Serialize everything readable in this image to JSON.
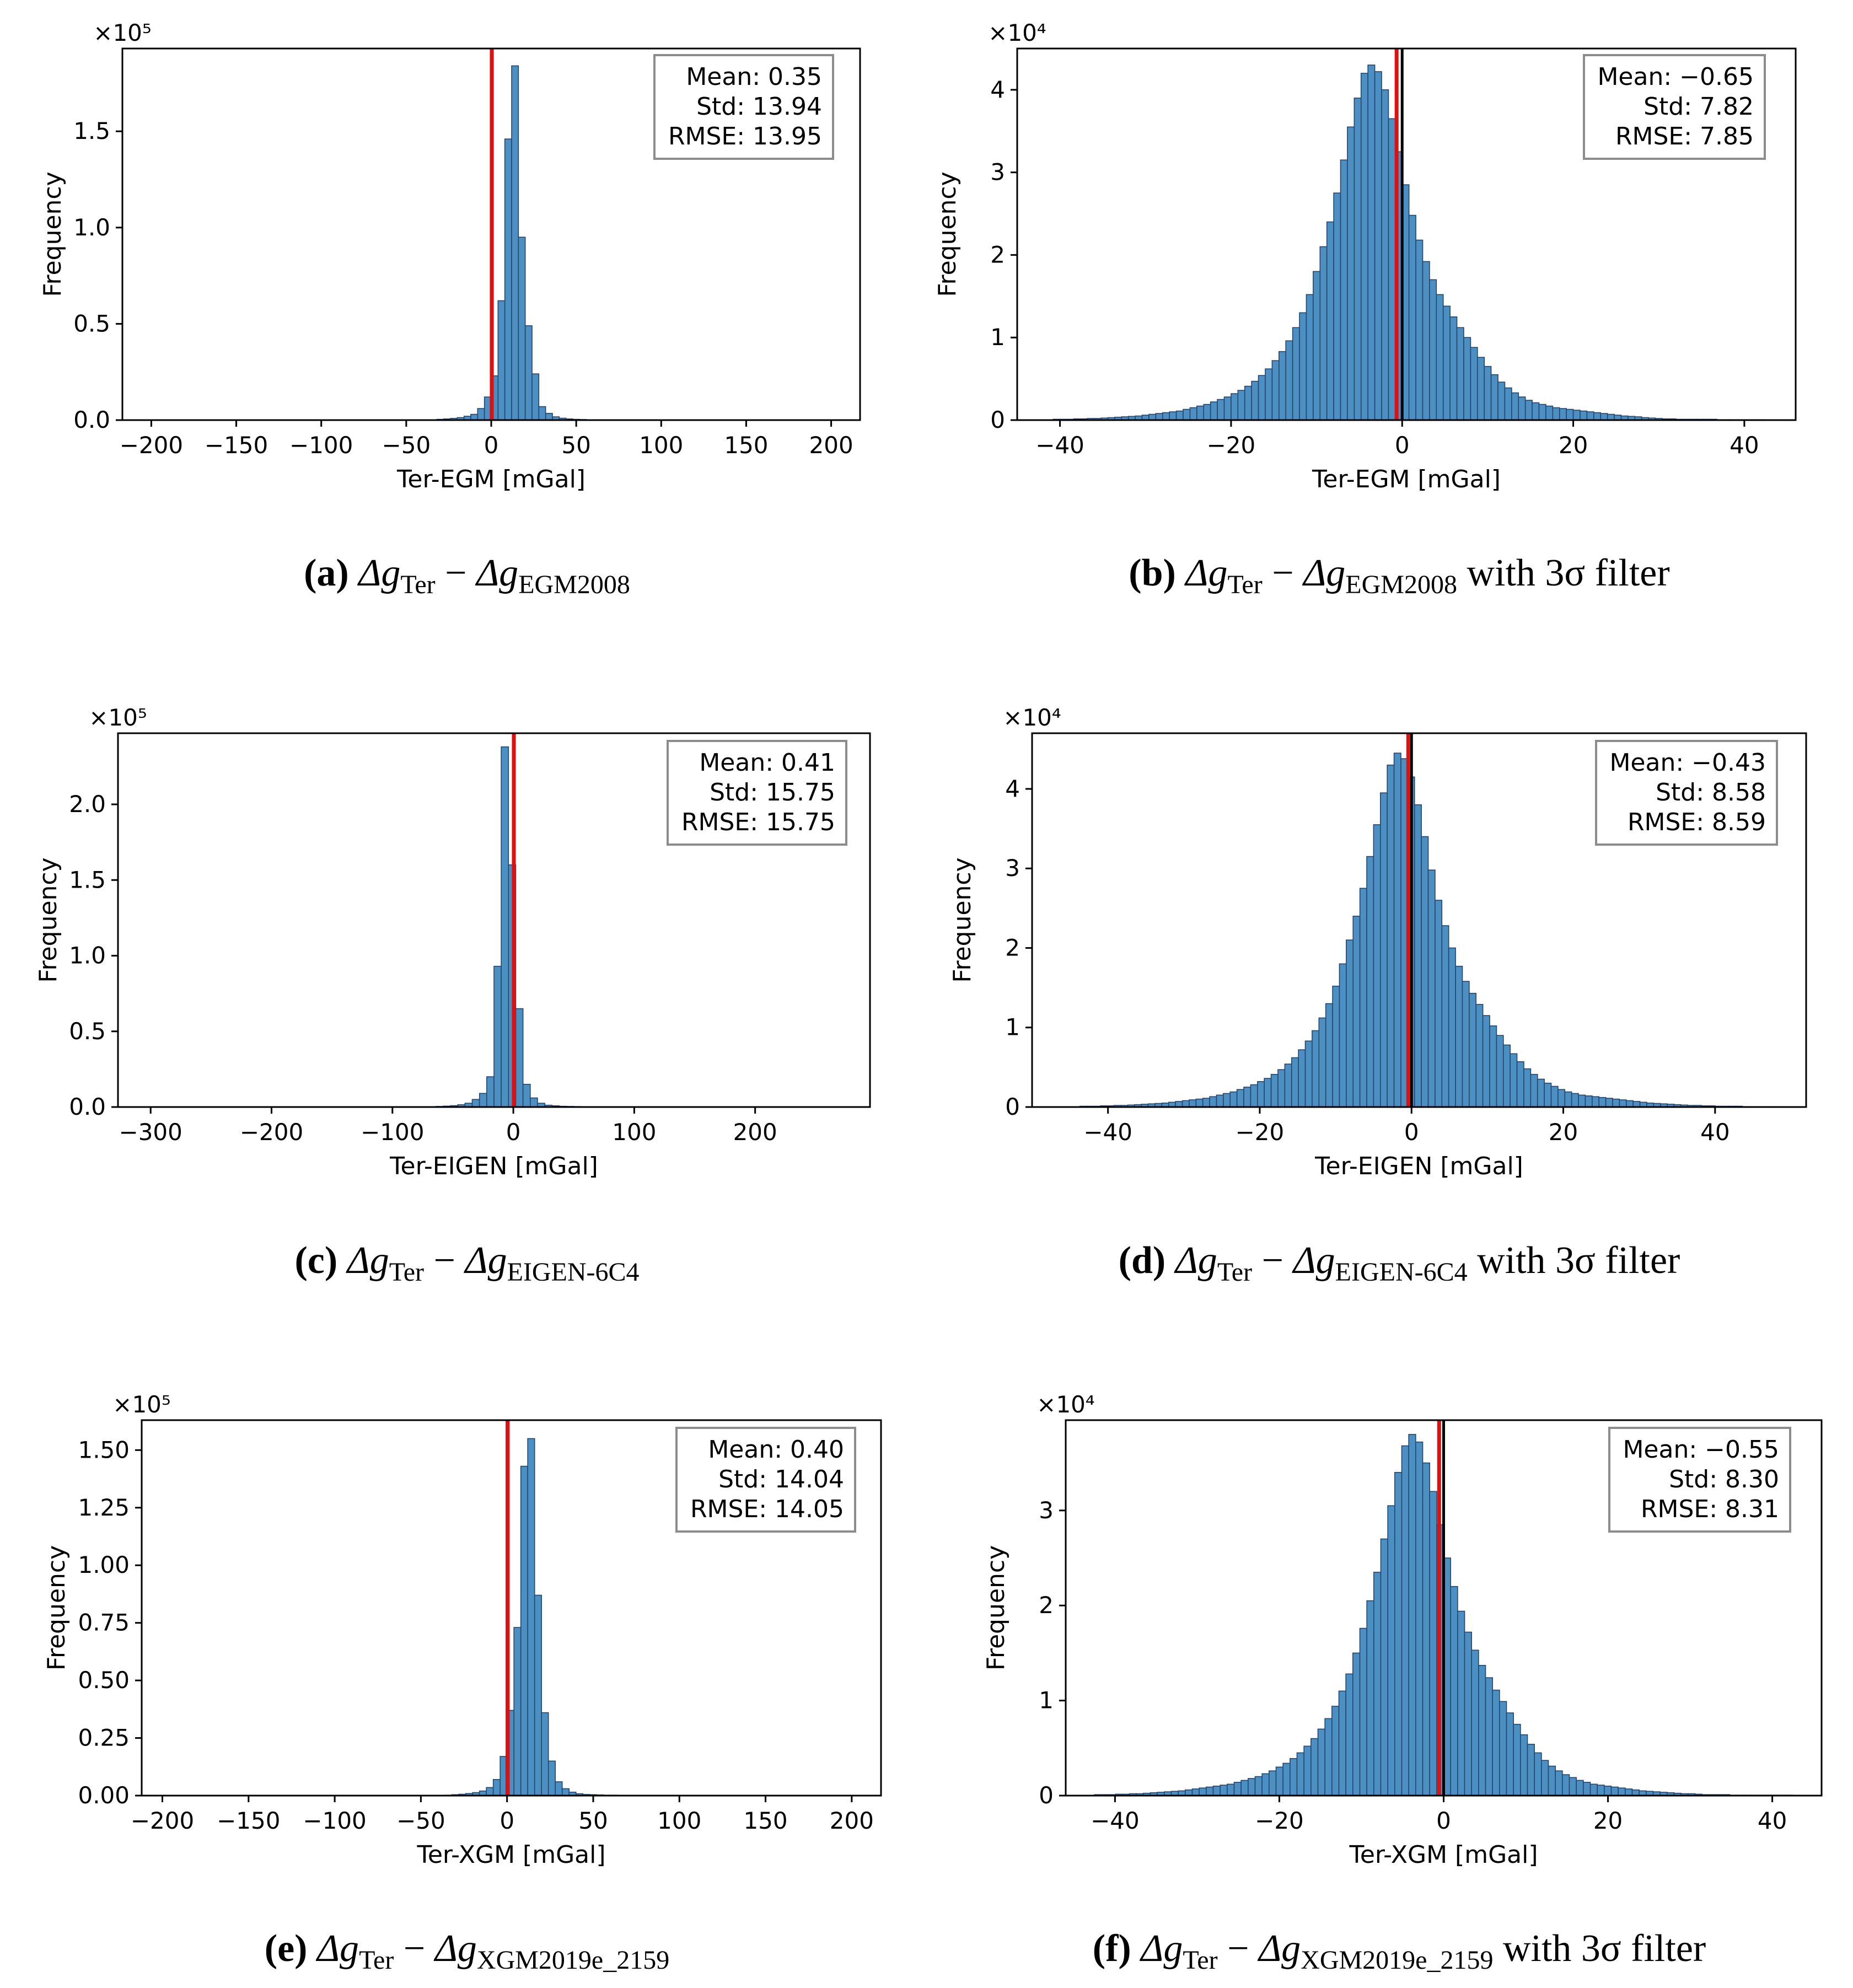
{
  "chart_data": [
    {
      "id": "a",
      "type": "bar",
      "xlabel": "Ter-EGM [mGal]",
      "ylabel": "Frequency",
      "exponent_label": "×10⁵",
      "scale": 100000,
      "xlim": [
        -217,
        217
      ],
      "ylim": [
        0,
        1.93
      ],
      "xticks": [
        -200,
        -150,
        -100,
        -50,
        0,
        50,
        100,
        150,
        200
      ],
      "yticks": [
        0,
        0.5,
        1.0,
        1.5
      ],
      "ydecimals": 1,
      "bins": {
        "start": -200,
        "width": 4,
        "counts": [
          0.001,
          0.001,
          0.001,
          0.001,
          0.001,
          0.001,
          0.001,
          0.001,
          0.001,
          0.001,
          0.001,
          0.001,
          0.001,
          0.001,
          0.001,
          0.001,
          0.001,
          0.001,
          0.001,
          0.001,
          0.001,
          0.001,
          0.001,
          0.001,
          0.001,
          0.001,
          0.001,
          0.001,
          0.001,
          0.001,
          0.001,
          0.001,
          0.001,
          0.001,
          0.001,
          0.001,
          0.001,
          0.001,
          0.001,
          0.001,
          0.001,
          0.002,
          0.004,
          0.006,
          0.009,
          0.013,
          0.02,
          0.03,
          0.06,
          0.12,
          0.23,
          0.62,
          1.46,
          1.84,
          0.95,
          0.49,
          0.24,
          0.07,
          0.035,
          0.017,
          0.01,
          0.006,
          0.004,
          0.003,
          0.002,
          0.002,
          0.001,
          0.001,
          0.001,
          0.001,
          0.001,
          0.001,
          0.001,
          0.001,
          0.001,
          0.001,
          0.001,
          0.001,
          0.001,
          0.001,
          0.001,
          0.001,
          0.001,
          0.001,
          0.001,
          0.001,
          0.001,
          0.001,
          0.001,
          0.001,
          0.001,
          0.001,
          0.001,
          0.001,
          0.001,
          0.001,
          0.001,
          0.001,
          0.001,
          0.001
        ]
      },
      "mean_line": 0.35,
      "zero_line": 0,
      "stats": {
        "mean": "Mean: 0.35",
        "std": "Std: 13.94",
        "rmse": "RMSE: 13.95"
      },
      "caption": {
        "letter": "(a)",
        "model": "EGM2008",
        "suffix": ""
      }
    },
    {
      "id": "b",
      "type": "bar",
      "xlabel": "Ter-EGM [mGal]",
      "ylabel": "Frequency",
      "exponent_label": "×10⁴",
      "scale": 10000,
      "xlim": [
        -45,
        46
      ],
      "ylim": [
        0,
        4.5
      ],
      "xticks": [
        -40,
        -20,
        0,
        20,
        40
      ],
      "yticks": [
        0,
        1,
        2,
        3,
        4
      ],
      "ydecimals": 0,
      "bins": {
        "start": -40.8,
        "width": 0.8,
        "counts": [
          0.01,
          0.01,
          0.01,
          0.015,
          0.015,
          0.02,
          0.02,
          0.025,
          0.03,
          0.035,
          0.04,
          0.045,
          0.05,
          0.06,
          0.07,
          0.08,
          0.09,
          0.1,
          0.11,
          0.13,
          0.15,
          0.17,
          0.19,
          0.22,
          0.25,
          0.28,
          0.32,
          0.36,
          0.41,
          0.47,
          0.54,
          0.62,
          0.72,
          0.83,
          0.96,
          1.12,
          1.3,
          1.52,
          1.8,
          2.1,
          2.4,
          2.75,
          3.15,
          3.55,
          3.9,
          4.2,
          4.3,
          4.22,
          4.0,
          3.65,
          3.25,
          2.85,
          2.48,
          2.18,
          1.92,
          1.7,
          1.52,
          1.38,
          1.25,
          1.12,
          1.0,
          0.88,
          0.76,
          0.65,
          0.55,
          0.46,
          0.39,
          0.33,
          0.28,
          0.24,
          0.21,
          0.19,
          0.17,
          0.15,
          0.14,
          0.13,
          0.12,
          0.11,
          0.1,
          0.09,
          0.08,
          0.07,
          0.06,
          0.05,
          0.045,
          0.04,
          0.03,
          0.025,
          0.02,
          0.015,
          0.015,
          0.01,
          0.01,
          0.01,
          0.01,
          0.01,
          0.01,
          0.005,
          0.005,
          0.005,
          0.005,
          0.005,
          0.005,
          0.005
        ]
      },
      "mean_line": -0.65,
      "zero_line": 0,
      "stats": {
        "mean": "Mean: −0.65",
        "std": "Std: 7.82",
        "rmse": "RMSE: 7.85"
      },
      "caption": {
        "letter": "(b)",
        "model": "EGM2008",
        "suffix": " with 3σ filter"
      }
    },
    {
      "id": "c",
      "type": "bar",
      "xlabel": "Ter-EIGEN [mGal]",
      "ylabel": "Frequency",
      "exponent_label": "×10⁵",
      "scale": 100000,
      "xlim": [
        -327,
        295
      ],
      "ylim": [
        0,
        2.47
      ],
      "xticks": [
        -300,
        -200,
        -100,
        0,
        100,
        200
      ],
      "yticks": [
        0,
        0.5,
        1.0,
        1.5,
        2.0
      ],
      "ydecimals": 1,
      "bins": {
        "start": -310,
        "width": 6,
        "counts": [
          0.001,
          0.001,
          0.001,
          0.001,
          0.001,
          0.001,
          0.001,
          0.001,
          0.001,
          0.001,
          0.001,
          0.001,
          0.001,
          0.001,
          0.001,
          0.001,
          0.001,
          0.001,
          0.001,
          0.001,
          0.001,
          0.001,
          0.001,
          0.001,
          0.001,
          0.001,
          0.001,
          0.001,
          0.001,
          0.001,
          0.001,
          0.001,
          0.001,
          0.001,
          0.001,
          0.001,
          0.001,
          0.001,
          0.001,
          0.001,
          0.002,
          0.004,
          0.006,
          0.009,
          0.015,
          0.025,
          0.05,
          0.09,
          0.2,
          0.93,
          2.38,
          1.6,
          0.65,
          0.15,
          0.06,
          0.025,
          0.012,
          0.008,
          0.005,
          0.004,
          0.003,
          0.002,
          0.002,
          0.001,
          0.001,
          0.001,
          0.001,
          0.001,
          0.001,
          0.001,
          0.001,
          0.001,
          0.001,
          0.001,
          0.001,
          0.001,
          0.001,
          0.001,
          0.001,
          0.001,
          0.001,
          0.001,
          0.001,
          0.001,
          0.001,
          0.001,
          0.001,
          0.001,
          0.001,
          0.001,
          0.001,
          0.001,
          0.001,
          0.001,
          0.001,
          0.001,
          0.001,
          0.001,
          0.001,
          0.001
        ]
      },
      "mean_line": 0.41,
      "zero_line": 0,
      "stats": {
        "mean": "Mean: 0.41",
        "std": "Std: 15.75",
        "rmse": "RMSE: 15.75"
      },
      "caption": {
        "letter": "(c)",
        "model": "EIGEN-6C4",
        "suffix": ""
      }
    },
    {
      "id": "d",
      "type": "bar",
      "xlabel": "Ter-EIGEN [mGal]",
      "ylabel": "Frequency",
      "exponent_label": "×10⁴",
      "scale": 10000,
      "xlim": [
        -50,
        52
      ],
      "ylim": [
        0,
        4.7
      ],
      "xticks": [
        -40,
        -20,
        0,
        20,
        40
      ],
      "yticks": [
        0,
        1,
        2,
        3,
        4
      ],
      "ydecimals": 0,
      "bins": {
        "start": -43.7,
        "width": 0.9,
        "counts": [
          0.01,
          0.01,
          0.01,
          0.015,
          0.015,
          0.02,
          0.02,
          0.025,
          0.03,
          0.035,
          0.04,
          0.045,
          0.05,
          0.06,
          0.07,
          0.08,
          0.09,
          0.1,
          0.11,
          0.13,
          0.15,
          0.17,
          0.19,
          0.22,
          0.25,
          0.28,
          0.32,
          0.36,
          0.41,
          0.47,
          0.54,
          0.62,
          0.72,
          0.83,
          0.96,
          1.12,
          1.3,
          1.52,
          1.8,
          2.1,
          2.4,
          2.75,
          3.15,
          3.55,
          3.95,
          4.3,
          4.45,
          4.38,
          4.15,
          3.8,
          3.4,
          2.98,
          2.6,
          2.28,
          2.0,
          1.77,
          1.58,
          1.43,
          1.29,
          1.15,
          1.02,
          0.9,
          0.78,
          0.67,
          0.57,
          0.48,
          0.41,
          0.35,
          0.3,
          0.26,
          0.22,
          0.19,
          0.17,
          0.15,
          0.14,
          0.13,
          0.12,
          0.11,
          0.1,
          0.09,
          0.08,
          0.07,
          0.06,
          0.05,
          0.045,
          0.04,
          0.035,
          0.03,
          0.025,
          0.02,
          0.02,
          0.015,
          0.015,
          0.01,
          0.01,
          0.01,
          0.01,
          0.005,
          0.005,
          0.005,
          0.005,
          0.005,
          0.005
        ]
      },
      "mean_line": -0.43,
      "zero_line": 0,
      "stats": {
        "mean": "Mean: −0.43",
        "std": "Std: 8.58",
        "rmse": "RMSE: 8.59"
      },
      "caption": {
        "letter": "(d)",
        "model": "EIGEN-6C4",
        "suffix": " with 3σ filter"
      }
    },
    {
      "id": "e",
      "type": "bar",
      "xlabel": "Ter-XGM [mGal]",
      "ylabel": "Frequency",
      "exponent_label": "×10⁵",
      "scale": 100000,
      "xlim": [
        -212,
        217
      ],
      "ylim": [
        0,
        1.63
      ],
      "xticks": [
        -200,
        -150,
        -100,
        -50,
        0,
        50,
        100,
        150,
        200
      ],
      "yticks": [
        0,
        0.25,
        0.5,
        0.75,
        1.0,
        1.25,
        1.5
      ],
      "ydecimals": 2,
      "bins": {
        "start": -200,
        "width": 4,
        "counts": [
          0.001,
          0.001,
          0.001,
          0.001,
          0.001,
          0.001,
          0.001,
          0.001,
          0.001,
          0.001,
          0.001,
          0.001,
          0.001,
          0.001,
          0.001,
          0.001,
          0.001,
          0.001,
          0.001,
          0.001,
          0.001,
          0.001,
          0.001,
          0.001,
          0.001,
          0.001,
          0.001,
          0.001,
          0.001,
          0.001,
          0.001,
          0.001,
          0.001,
          0.001,
          0.001,
          0.001,
          0.001,
          0.001,
          0.001,
          0.001,
          0.001,
          0.002,
          0.004,
          0.006,
          0.009,
          0.013,
          0.02,
          0.035,
          0.07,
          0.17,
          0.37,
          0.73,
          1.43,
          1.55,
          0.87,
          0.36,
          0.15,
          0.06,
          0.03,
          0.015,
          0.008,
          0.005,
          0.004,
          0.003,
          0.002,
          0.002,
          0.001,
          0.001,
          0.001,
          0.001,
          0.001,
          0.001,
          0.001,
          0.001,
          0.001,
          0.001,
          0.001,
          0.001,
          0.001,
          0.001,
          0.001,
          0.001,
          0.001,
          0.001,
          0.001,
          0.001,
          0.001,
          0.001,
          0.001,
          0.001,
          0.001,
          0.001,
          0.001,
          0.001,
          0.001,
          0.001,
          0.001,
          0.001,
          0.001,
          0.001
        ]
      },
      "mean_line": 0.4,
      "zero_line": 0,
      "stats": {
        "mean": "Mean: 0.40",
        "std": "Std: 14.04",
        "rmse": "RMSE: 14.05"
      },
      "caption": {
        "letter": "(e)",
        "model": "XGM2019e_2159",
        "suffix": ""
      }
    },
    {
      "id": "f",
      "type": "bar",
      "xlabel": "Ter-XGM [mGal]",
      "ylabel": "Frequency",
      "exponent_label": "×10⁴",
      "scale": 10000,
      "xlim": [
        -46,
        46
      ],
      "ylim": [
        0,
        3.95
      ],
      "xticks": [
        -40,
        -20,
        0,
        20,
        40
      ],
      "yticks": [
        0,
        1,
        2,
        3
      ],
      "ydecimals": 0,
      "bins": {
        "start": -42.5,
        "width": 0.85,
        "counts": [
          0.01,
          0.01,
          0.01,
          0.015,
          0.015,
          0.02,
          0.02,
          0.025,
          0.03,
          0.035,
          0.04,
          0.045,
          0.05,
          0.06,
          0.07,
          0.08,
          0.09,
          0.1,
          0.11,
          0.12,
          0.14,
          0.16,
          0.18,
          0.2,
          0.23,
          0.26,
          0.3,
          0.34,
          0.39,
          0.45,
          0.52,
          0.6,
          0.7,
          0.81,
          0.94,
          1.1,
          1.28,
          1.5,
          1.76,
          2.05,
          2.35,
          2.7,
          3.05,
          3.4,
          3.68,
          3.8,
          3.72,
          3.5,
          3.2,
          2.85,
          2.5,
          2.2,
          1.94,
          1.72,
          1.53,
          1.37,
          1.24,
          1.11,
          0.99,
          0.87,
          0.75,
          0.64,
          0.54,
          0.45,
          0.37,
          0.31,
          0.26,
          0.22,
          0.19,
          0.16,
          0.14,
          0.12,
          0.11,
          0.1,
          0.09,
          0.08,
          0.07,
          0.06,
          0.05,
          0.045,
          0.04,
          0.035,
          0.03,
          0.025,
          0.02,
          0.02,
          0.015,
          0.01,
          0.01,
          0.01,
          0.01,
          0.005,
          0.005,
          0.005,
          0.005,
          0.005,
          0.005,
          0.005,
          0.005,
          0.005
        ]
      },
      "mean_line": -0.55,
      "zero_line": 0,
      "stats": {
        "mean": "Mean: −0.55",
        "std": "Std: 8.30",
        "rmse": "RMSE: 8.31"
      },
      "caption": {
        "letter": "(f)",
        "model": "XGM2019e_2159",
        "suffix": " with 3σ filter"
      }
    }
  ],
  "caption_common": {
    "delta_g": "Δg",
    "ter_sub": "Ter",
    "minus": " − "
  },
  "colors": {
    "bar_fill": "#4c8fc2",
    "bar_edge": "#26456b",
    "mean_line": "#e01010",
    "zero_line": "#000000",
    "legend_border": "#8c8c8c"
  }
}
